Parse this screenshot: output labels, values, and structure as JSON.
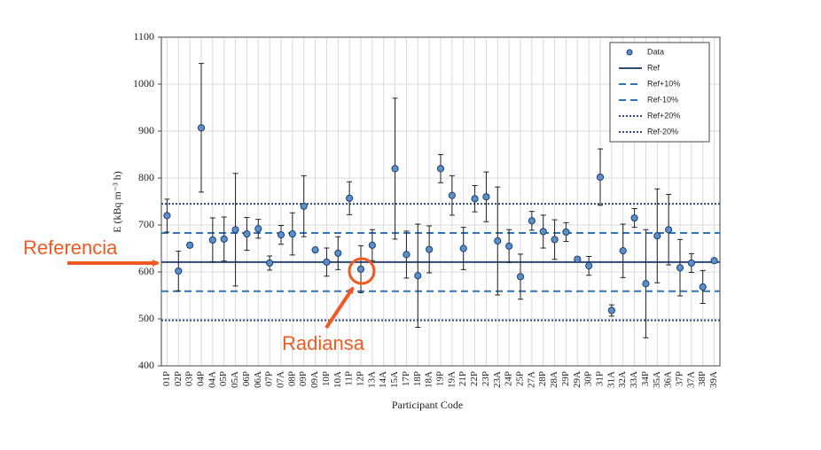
{
  "chart_data": {
    "type": "errorbar",
    "y_label": "E (kBq m⁻³ h)",
    "x_label": "Participant Code",
    "categories": [
      "01P",
      "02P",
      "03P",
      "04P",
      "04A",
      "05P",
      "05A",
      "06P",
      "06A",
      "07P",
      "07A",
      "08P",
      "09P",
      "09A",
      "10P",
      "10A",
      "11P",
      "12P",
      "13A",
      "14A",
      "15A",
      "17P",
      "18P",
      "18A",
      "19P",
      "19A",
      "21P",
      "22P",
      "23P",
      "23A",
      "24P",
      "25P",
      "27A",
      "28P",
      "28A",
      "29P",
      "29A",
      "30P",
      "31P",
      "31A",
      "32A",
      "33A",
      "34P",
      "35A",
      "36A",
      "37P",
      "37A",
      "38P",
      "39A"
    ],
    "series": [
      {
        "name": "Data",
        "color": "#5b8fc9",
        "values": [
          720,
          602,
          657,
          907,
          668,
          670,
          690,
          681,
          692,
          619,
          679,
          681,
          740,
          647,
          621,
          640,
          757,
          606,
          657,
          null,
          820,
          637,
          592,
          648,
          820,
          763,
          650,
          756,
          760,
          666,
          655,
          590,
          709,
          686,
          669,
          685,
          627,
          613,
          802,
          518,
          645,
          715,
          575,
          677,
          690,
          609,
          619,
          568,
          624
        ],
        "errors": [
          35,
          42,
          5,
          137,
          47,
          47,
          120,
          35,
          20,
          15,
          20,
          45,
          65,
          0,
          30,
          35,
          35,
          50,
          33,
          null,
          150,
          50,
          110,
          50,
          30,
          42,
          45,
          28,
          53,
          115,
          35,
          48,
          20,
          35,
          42,
          20,
          5,
          20,
          60,
          12,
          57,
          20,
          115,
          100,
          75,
          60,
          20,
          35,
          0
        ]
      }
    ],
    "reference_lines": [
      {
        "name": "Ref",
        "value": 621,
        "style": "solid",
        "color": "#2e4a78"
      },
      {
        "name": "Ref+10%",
        "value": 683,
        "style": "dashed",
        "color": "#2e75b6"
      },
      {
        "name": "Ref-10%",
        "value": 559,
        "style": "dashed",
        "color": "#2e75b6"
      },
      {
        "name": "Ref+20%",
        "value": 745,
        "style": "dotted",
        "color": "#2e4a78"
      },
      {
        "name": "Ref-20%",
        "value": 497,
        "style": "dotted",
        "color": "#2e4a78"
      }
    ],
    "ylim": [
      400,
      1100
    ],
    "yticks": [
      400,
      500,
      600,
      700,
      800,
      900,
      1000,
      1100
    ],
    "grid": true,
    "legend": "top-right",
    "annotations": [
      {
        "text": "Referencia"
      },
      {
        "text": "Radiansa"
      }
    ]
  }
}
